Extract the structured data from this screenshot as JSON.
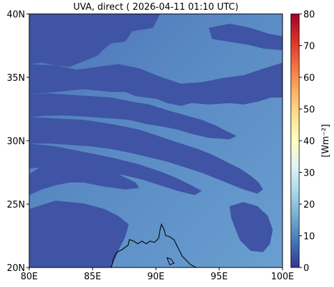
{
  "title": "UVA, direct ( 2026-04-11 01:10 UTC)",
  "map": {
    "x_ticks": [
      "80E",
      "85E",
      "90E",
      "95E",
      "100E"
    ],
    "x_values": [
      80,
      85,
      90,
      95,
      100
    ],
    "y_ticks": [
      "40N",
      "35N",
      "30N",
      "25N",
      "20N"
    ],
    "y_values": [
      40,
      35,
      30,
      25,
      20
    ],
    "xlim": [
      80,
      100
    ],
    "ylim": [
      20,
      40
    ],
    "base_color": "#5b8cc5",
    "cloud_color": "#3f54a4",
    "coast_color": "#000000"
  },
  "colorbar": {
    "label": "[Wm⁻²]",
    "ticks": [
      "80",
      "70",
      "60",
      "50",
      "40",
      "30",
      "20",
      "10",
      "0"
    ],
    "values": [
      80,
      70,
      60,
      50,
      40,
      30,
      20,
      10,
      0
    ],
    "range": [
      0,
      80
    ],
    "colors": [
      "#313695",
      "#4575b4",
      "#74add1",
      "#abd9e9",
      "#e0f3f8",
      "#ffffbf",
      "#fee090",
      "#fdae61",
      "#f46d43",
      "#d73027",
      "#a50026"
    ]
  }
}
